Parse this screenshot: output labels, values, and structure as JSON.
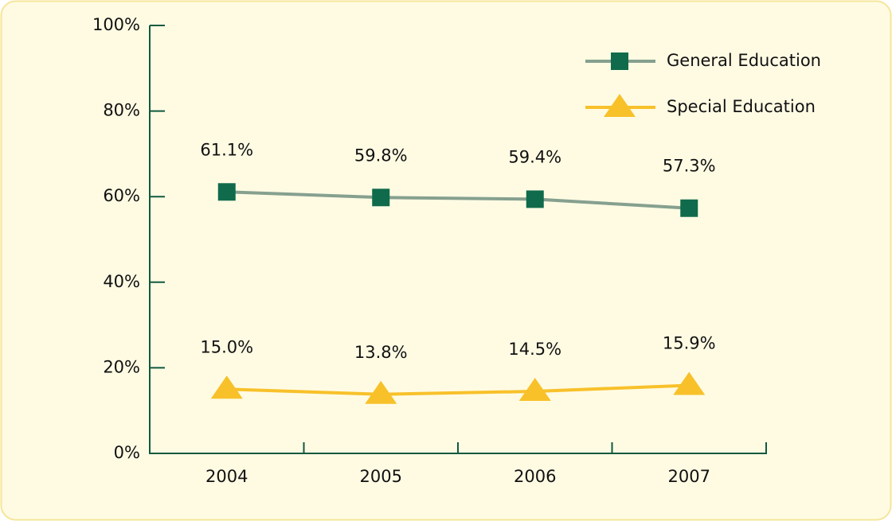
{
  "chart_data": {
    "type": "line",
    "categories": [
      "2004",
      "2005",
      "2006",
      "2007"
    ],
    "series": [
      {
        "name": "General Education",
        "color": "#0f6b4b",
        "line_color": "#86a08f",
        "marker": "square",
        "values": [
          61.1,
          59.8,
          59.4,
          57.3
        ],
        "value_labels": [
          "61.1%",
          "59.8%",
          "59.4%",
          "57.3%"
        ]
      },
      {
        "name": "Special Education",
        "color": "#f8c12a",
        "line_color": "#f8c12a",
        "marker": "triangle",
        "values": [
          15.0,
          13.8,
          14.5,
          15.9
        ],
        "value_labels": [
          "15.0%",
          "13.8%",
          "14.5%",
          "15.9%"
        ]
      }
    ],
    "ylim": [
      0,
      100
    ],
    "yticks": [
      {
        "value": 0,
        "label": "0%"
      },
      {
        "value": 20,
        "label": "20%"
      },
      {
        "value": 40,
        "label": "40%"
      },
      {
        "value": 60,
        "label": "60%"
      },
      {
        "value": 80,
        "label": "80%"
      },
      {
        "value": 100,
        "label": "100%"
      }
    ],
    "legend": "upper right"
  }
}
